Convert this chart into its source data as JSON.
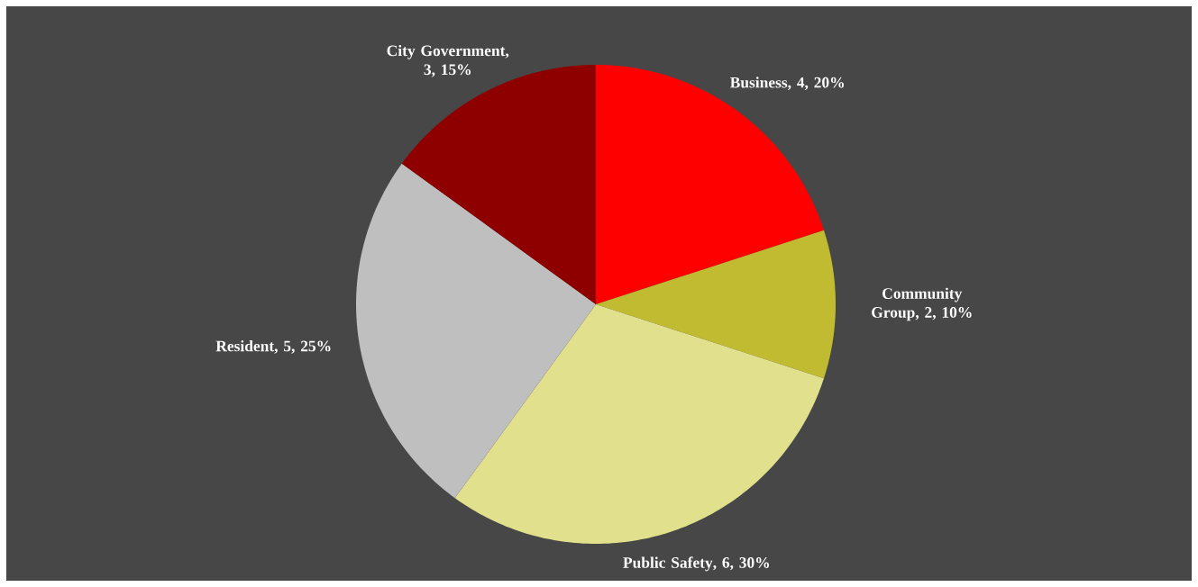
{
  "chart_data": {
    "type": "pie",
    "categories": [
      "Business",
      "Community Group",
      "Public Safety",
      "Resident",
      "City Government"
    ],
    "values": [
      4,
      2,
      6,
      5,
      3
    ],
    "colors": [
      "#ff0000",
      "#c0bb30",
      "#e1e08c",
      "#bfbfbf",
      "#8e0000"
    ],
    "value_labels": [
      ", 4, 20%",
      ", 2, 10%",
      ", 6, 30%",
      ", 5, 25%",
      ", 3, 15%"
    ]
  }
}
